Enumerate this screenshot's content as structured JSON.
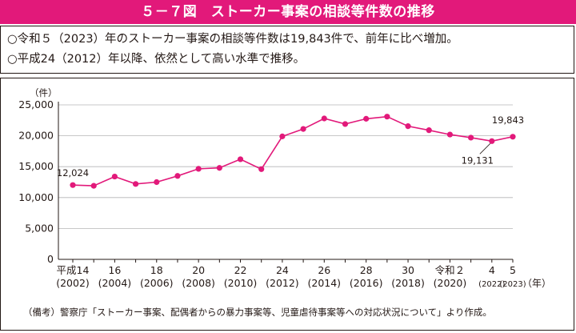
{
  "title": "５－７図　ストーカー事案の相談等件数の推移",
  "summary": [
    "○令和５（2023）年のストーカー事案の相談等件数は19,843件で、前年に比べ増加。",
    "○平成24（2012）年以降、依然として高い水準で推移。"
  ],
  "source_note": "（備考）警察庁「ストーカー事案、配偶者からの暴力事案等、児童虐待事案等への対応状況について」より作成。",
  "colors": {
    "accent": "#e2197a",
    "line": "#e2197a",
    "text": "#231815",
    "grid": "#b5b5b6"
  },
  "chart_data": {
    "type": "line",
    "ylabel": "（件）",
    "xlabel": "（年）",
    "ylim": [
      0,
      25000
    ],
    "yticks": [
      0,
      5000,
      10000,
      15000,
      20000,
      25000
    ],
    "ytick_labels": [
      "0",
      "5,000",
      "10,000",
      "15,000",
      "20,000",
      "25,000"
    ],
    "grid": "horizontal",
    "x": [
      2002,
      2003,
      2004,
      2005,
      2006,
      2007,
      2008,
      2009,
      2010,
      2011,
      2012,
      2013,
      2014,
      2015,
      2016,
      2017,
      2018,
      2019,
      2020,
      2021,
      2022,
      2023
    ],
    "values": [
      12024,
      11900,
      13400,
      12200,
      12500,
      13500,
      14650,
      14800,
      16200,
      14600,
      19900,
      21100,
      22800,
      21900,
      22750,
      23100,
      21550,
      20900,
      20200,
      19700,
      19131,
      19843
    ],
    "xticks": [
      {
        "year": 2002,
        "line1": "平成14",
        "line2": "(2002)"
      },
      {
        "year": 2004,
        "line1": "16",
        "line2": "(2004)"
      },
      {
        "year": 2006,
        "line1": "18",
        "line2": "(2006)"
      },
      {
        "year": 2008,
        "line1": "20",
        "line2": "(2008)"
      },
      {
        "year": 2010,
        "line1": "22",
        "line2": "(2010)"
      },
      {
        "year": 2012,
        "line1": "24",
        "line2": "(2012)"
      },
      {
        "year": 2014,
        "line1": "26",
        "line2": "(2014)"
      },
      {
        "year": 2016,
        "line1": "28",
        "line2": "(2016)"
      },
      {
        "year": 2018,
        "line1": "30",
        "line2": "(2018)"
      },
      {
        "year": 2020,
        "line1": "令和２",
        "line2": "(2020)"
      },
      {
        "year": 2022,
        "line1": "4",
        "line2": "(2022)",
        "small": true
      },
      {
        "year": 2023,
        "line1": "5",
        "line2": "(2023)",
        "small": true
      }
    ],
    "annotations": [
      {
        "year": 2002,
        "value": 12024,
        "label": "12,024",
        "position": "above"
      },
      {
        "year": 2022,
        "value": 19131,
        "label": "19,131",
        "position": "below-left"
      },
      {
        "year": 2023,
        "value": 19843,
        "label": "19,843",
        "position": "above"
      }
    ]
  }
}
